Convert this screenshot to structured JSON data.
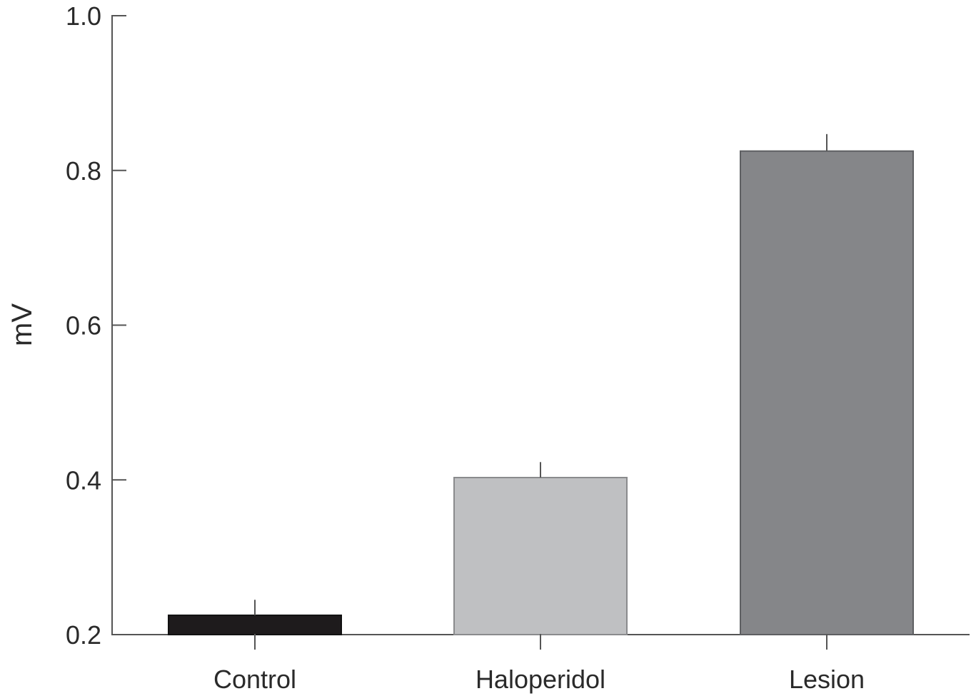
{
  "chart_data": {
    "type": "bar",
    "categories": [
      "Control",
      "Haloperidol",
      "Lesion"
    ],
    "values": [
      0.225,
      0.403,
      0.825
    ],
    "error_upper": [
      0.245,
      0.423,
      0.847
    ],
    "colors": [
      "#1e1b1c",
      "#bfc0c2",
      "#858689"
    ],
    "xlabel": "",
    "ylabel": "mV",
    "ylim": [
      0.2,
      1.0
    ],
    "yticks": [
      {
        "value": 0.2,
        "label": "0.2"
      },
      {
        "value": 0.4,
        "label": "0.4"
      },
      {
        "value": 0.6,
        "label": "0.6"
      },
      {
        "value": 0.8,
        "label": "0.8"
      },
      {
        "value": 1.0,
        "label": "1.0"
      }
    ],
    "grid": false,
    "legend": "none"
  }
}
